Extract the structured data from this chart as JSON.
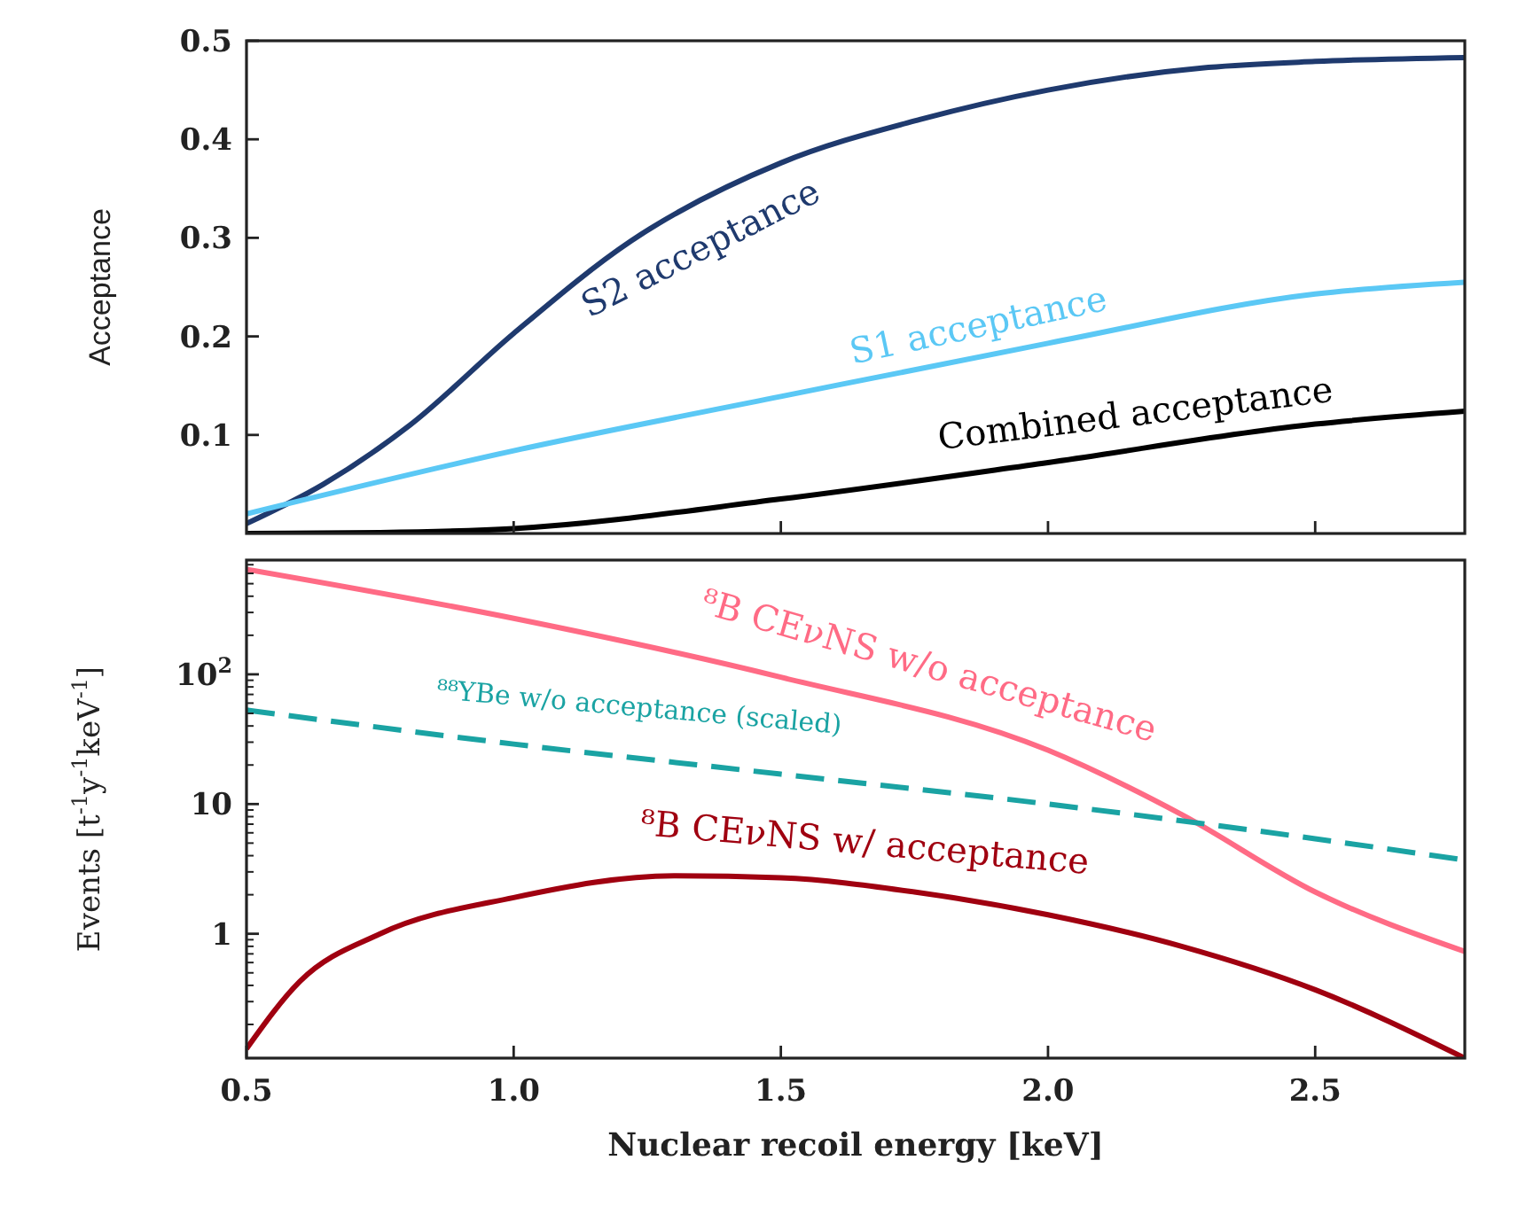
{
  "chart_data": [
    {
      "type": "line",
      "ylabel": "Acceptance",
      "xlim": [
        0.5,
        2.78
      ],
      "xticks": [
        {
          "value": 1.0,
          "label": null
        },
        {
          "value": 1.5,
          "label": null
        },
        {
          "value": 2.0,
          "label": null
        },
        {
          "value": 2.5,
          "label": null
        }
      ],
      "ylim": [
        0,
        0.5
      ],
      "yticks": [
        0.1,
        0.2,
        0.3,
        0.4,
        0.5
      ],
      "tick_labels": "y",
      "grid": false,
      "legend": false,
      "marker": "none",
      "line_style": "solid",
      "series": [
        {
          "name": "S2 acceptance",
          "color": "#1f3a6e",
          "x": [
            0.5,
            0.644,
            0.806,
            1.0,
            1.22,
            1.5,
            1.76,
            2.0,
            2.3,
            2.5,
            2.78
          ],
          "values": [
            0.01,
            0.05,
            0.11,
            0.203,
            0.297,
            0.376,
            0.42,
            0.45,
            0.473,
            0.479,
            0.483
          ]
        },
        {
          "name": "S1 acceptance",
          "color": "#5bc8f5",
          "x": [
            0.5,
            1.0,
            1.5,
            2.0,
            2.5,
            2.78
          ],
          "values": [
            0.02,
            0.084,
            0.139,
            0.193,
            0.243,
            0.255
          ]
        },
        {
          "name": "Combined acceptance",
          "color": "#000000",
          "x": [
            0.5,
            0.75,
            1.0,
            1.5,
            2.0,
            2.5,
            2.78
          ],
          "values": [
            0.0,
            0.001,
            0.005,
            0.035,
            0.072,
            0.111,
            0.124
          ]
        }
      ]
    },
    {
      "type": "line",
      "xlabel": "Nuclear recoil energy [keV]",
      "ylabel": "Events [t$^{-1}$y$^{-1}$keV$^{-1}$]",
      "log": "y",
      "xlim": [
        0.5,
        2.78
      ],
      "xticks": [
        {
          "value": 0.5,
          "label": "0.5"
        },
        {
          "value": 1.0,
          "label": "1.0"
        },
        {
          "value": 1.5,
          "label": "1.5"
        },
        {
          "value": 2.0,
          "label": "2.0"
        },
        {
          "value": 2.5,
          "label": "2.5"
        }
      ],
      "ylim": [
        0.11,
        760
      ],
      "yticks": [
        1,
        10,
        {
          "value": 100,
          "label": "10$^{2}$"
        }
      ],
      "grid": false,
      "legend": false,
      "marker": "none",
      "series": [
        {
          "name": "⁸B CEνNS w/o acceptance",
          "color": "#ff6b85",
          "line_style": "solid",
          "x": [
            0.5,
            1.0,
            1.5,
            2.0,
            2.25,
            2.5,
            2.78
          ],
          "values": [
            645,
            270,
            95,
            26,
            8.3,
            2.1,
            0.73
          ]
        },
        {
          "name": "⁸⁸YBe w/o acceptance (scaled)",
          "color": "#1aa3a3",
          "line_style": "dashed",
          "x": [
            0.5,
            1.0,
            1.5,
            2.0,
            2.5,
            2.78
          ],
          "values": [
            53,
            29,
            17,
            10,
            5.4,
            3.7
          ]
        },
        {
          "name": "⁸B CEνNS w/ acceptance",
          "color": "#a00010",
          "line_style": "solid",
          "x": [
            0.5,
            0.6,
            0.75,
            1.0,
            1.3,
            1.5,
            1.75,
            2.0,
            2.25,
            2.5,
            2.78
          ],
          "values": [
            0.13,
            0.43,
            1.0,
            1.9,
            2.8,
            2.7,
            2.1,
            1.4,
            0.8,
            0.37,
            0.11
          ]
        }
      ]
    }
  ]
}
